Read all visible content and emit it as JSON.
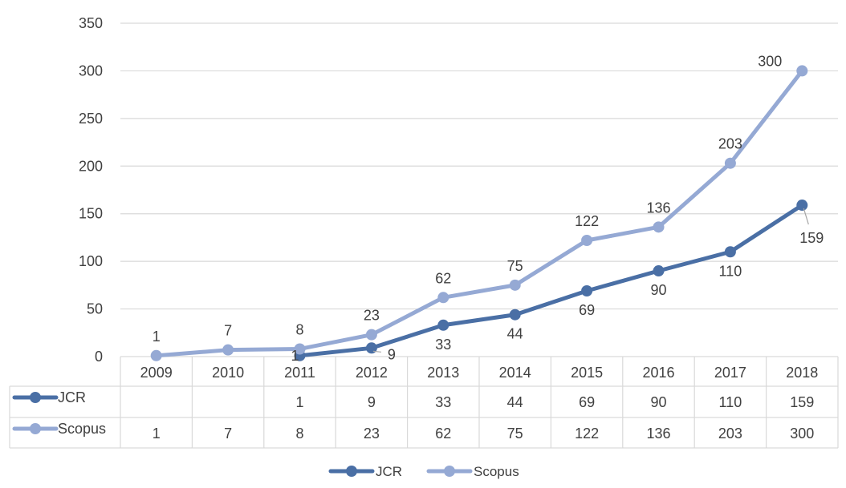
{
  "chart_data": {
    "type": "line",
    "title": "",
    "xlabel": "",
    "ylabel": "",
    "categories": [
      "2009",
      "2010",
      "2011",
      "2012",
      "2013",
      "2014",
      "2015",
      "2016",
      "2017",
      "2018"
    ],
    "ylim": [
      0,
      350
    ],
    "yticks": [
      0,
      50,
      100,
      150,
      200,
      250,
      300,
      350
    ],
    "grid": true,
    "legend_position": "bottom",
    "data_table": true,
    "series": [
      {
        "name": "JCR",
        "color": "#4a6fa5",
        "values": [
          null,
          null,
          1,
          9,
          33,
          44,
          69,
          90,
          110,
          159
        ]
      },
      {
        "name": "Scopus",
        "color": "#95a9d4",
        "values": [
          1,
          7,
          8,
          23,
          62,
          75,
          122,
          136,
          203,
          300
        ]
      }
    ]
  }
}
